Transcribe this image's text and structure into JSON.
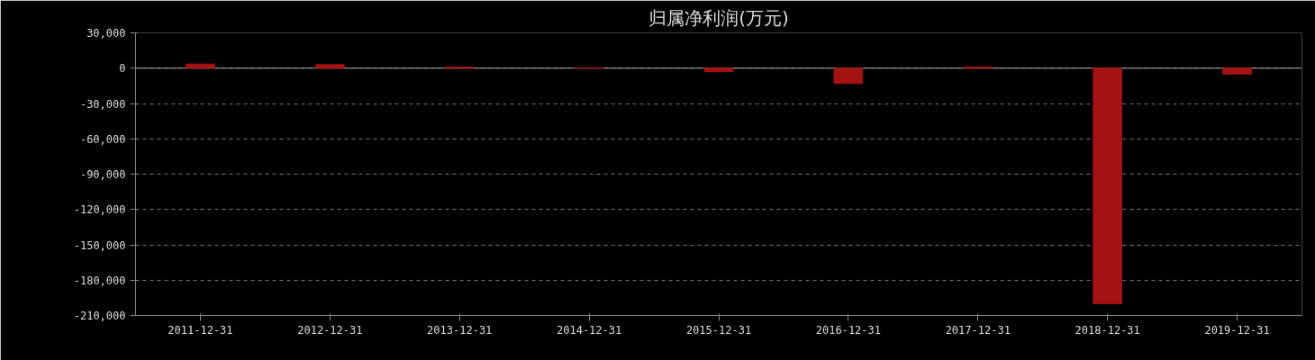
{
  "chart_data": {
    "type": "bar",
    "title": "归属净利润(万元)",
    "categories": [
      "2011-12-31",
      "2012-12-31",
      "2013-12-31",
      "2014-12-31",
      "2015-12-31",
      "2016-12-31",
      "2017-12-31",
      "2018-12-31",
      "2019-12-31"
    ],
    "values": [
      3500,
      3000,
      1000,
      300,
      -3000,
      -13000,
      1000,
      -200000,
      -5000
    ],
    "color": "#a51212",
    "ylim": [
      -210000,
      30000
    ],
    "yticks": [
      {
        "value": 30000,
        "label": "30,000"
      },
      {
        "value": 0,
        "label": "0"
      },
      {
        "value": -30000,
        "label": "-30,000"
      },
      {
        "value": -60000,
        "label": "-60,000"
      },
      {
        "value": -90000,
        "label": "-90,000"
      },
      {
        "value": -120000,
        "label": "-120,000"
      },
      {
        "value": -150000,
        "label": "-150,000"
      },
      {
        "value": -180000,
        "label": "-180,000"
      },
      {
        "value": -210000,
        "label": "-210,000"
      }
    ],
    "grid": "y"
  }
}
